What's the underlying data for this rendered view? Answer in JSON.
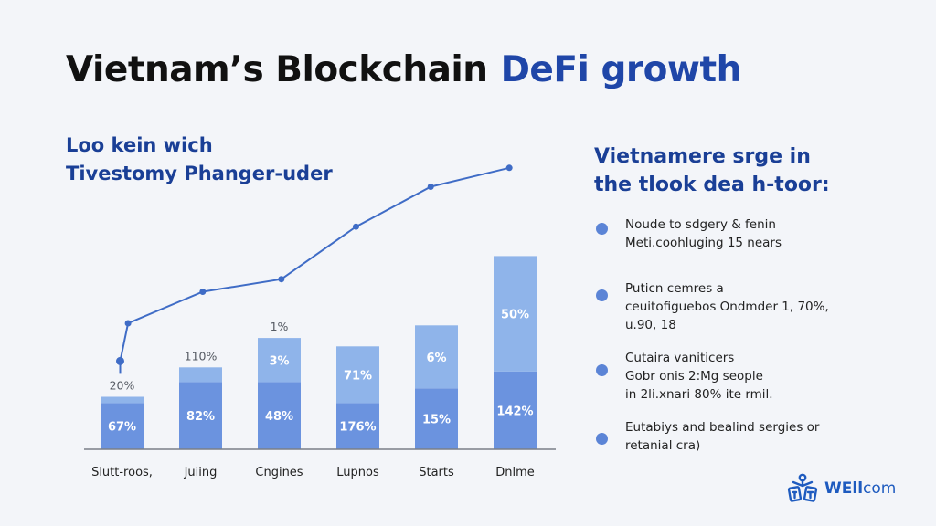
{
  "header": {
    "title_main": "Vietnam’s Blockchain",
    "title_accent": "DeFi growth"
  },
  "subtitle": {
    "line1": "Loo kein wich",
    "line2": "Tivestomy Phanger-uder"
  },
  "right_panel": {
    "heading_line1": "Vietnamere srge in",
    "heading_line2": "the tlook dea h-toor:",
    "bullets": [
      {
        "text": "Noude to sdgery & fenin\nMeti.coohluging 15 nears"
      },
      {
        "text": "Puticn cemres a\nceuitofiguebos Ondmder 1, 70%,\nu.90, 18"
      },
      {
        "text": "Cutaira vaniticers\nGobr onis 2:Mg seople\nin 2li.xnari 80% ite rmil."
      },
      {
        "text": "Eutabiys and bealind sergies or\nretanial cra)"
      }
    ]
  },
  "logo": {
    "icon": "figures-logo-icon",
    "text_bold": "WEll",
    "text_light": "com"
  },
  "colors": {
    "bar_dark": "#6b93df",
    "bar_light": "#8fb4ea",
    "line": "#3f6cc6",
    "title_accent": "#1f46a8",
    "bullet_dot": "#5b84d6"
  },
  "chart_data": {
    "type": "bar",
    "title": "",
    "xlabel": "",
    "ylabel": "",
    "categories": [
      "Slutt-roos,",
      "Juiing",
      "Cngines",
      "Lupnos",
      "Starts",
      "Dnlme"
    ],
    "series": [
      {
        "name": "lower",
        "values": [
          22,
          32,
          32,
          22,
          29,
          37
        ],
        "labels": [
          "67%",
          "82%",
          "48%",
          "176%",
          "15%",
          "142%"
        ]
      },
      {
        "name": "upper",
        "values": [
          3,
          7,
          21,
          27,
          30,
          55
        ],
        "labels": [
          "",
          "",
          "3%",
          "71%",
          "6%",
          "50%"
        ]
      }
    ],
    "top_labels": [
      "20%",
      "110%",
      "1%",
      "",
      "",
      ""
    ],
    "line": {
      "name": "trend",
      "x": [
        0.25,
        0.35,
        1.3,
        2.3,
        3.25,
        4.2,
        5.2
      ],
      "values": [
        42,
        60,
        75,
        81,
        106,
        125,
        134
      ]
    },
    "ylim": [
      0,
      140
    ],
    "grid": false,
    "legend": "none"
  }
}
